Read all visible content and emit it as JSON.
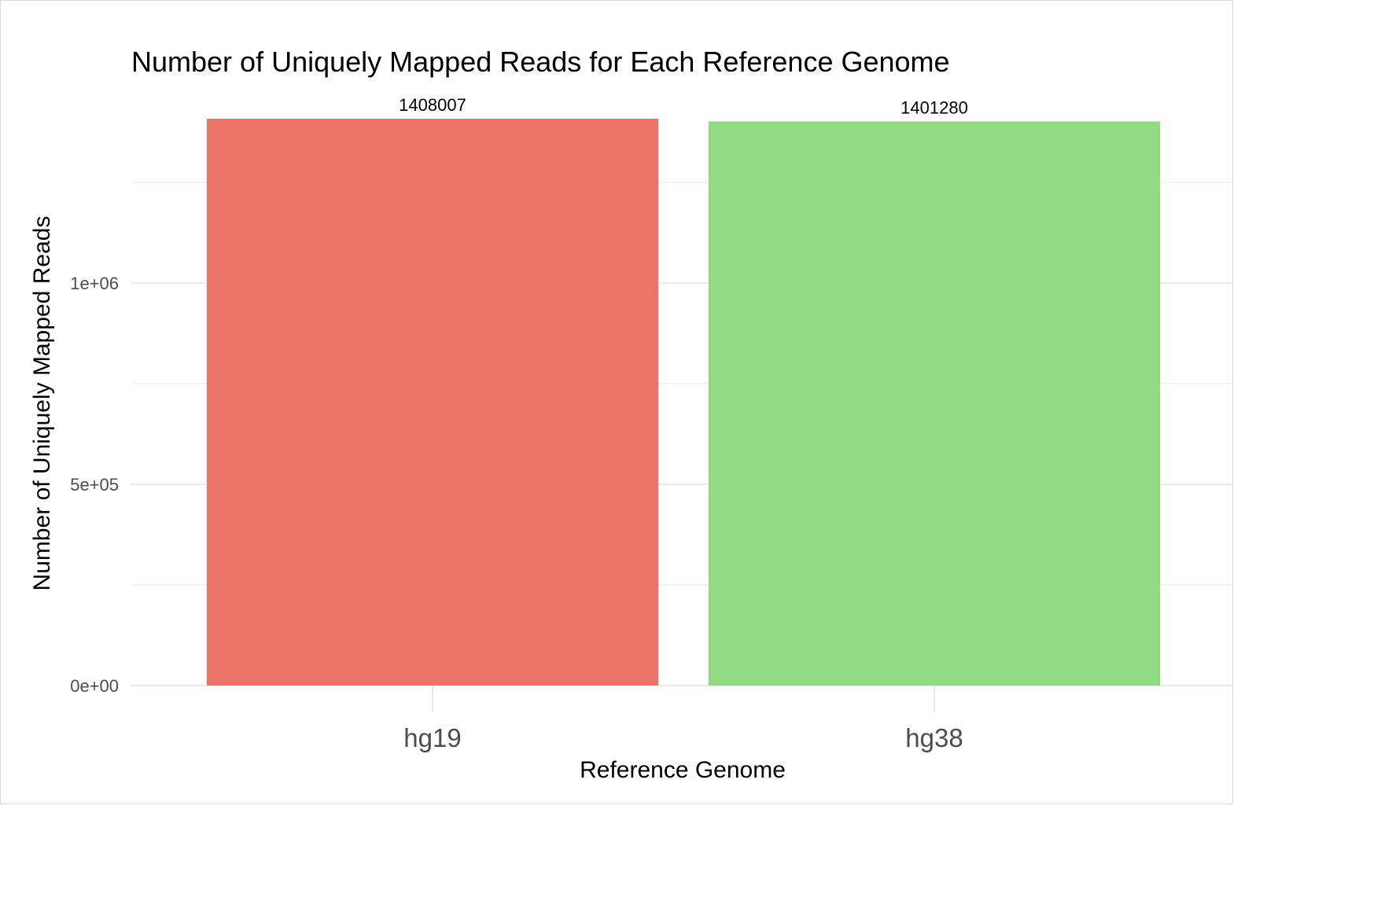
{
  "chart_data": {
    "type": "bar",
    "title": "Number of Uniquely Mapped Reads for Each Reference Genome",
    "xlabel": "Reference Genome",
    "ylabel": "Number of Uniquely Mapped Reads",
    "categories": [
      "hg19",
      "hg38"
    ],
    "values": [
      1408007,
      1401280
    ],
    "data_labels": [
      "1408007",
      "1401280"
    ],
    "colors": [
      "#ED7369",
      "#90DA82"
    ],
    "ylim": [
      0,
      1408007
    ],
    "y_ticks": [
      {
        "value": 0,
        "label": "0e+00"
      },
      {
        "value": 500000,
        "label": "5e+05"
      },
      {
        "value": 1000000,
        "label": "1e+06"
      }
    ],
    "y_minor_ticks": [
      250000,
      750000,
      1250000
    ],
    "grid": true,
    "legend": "none"
  }
}
